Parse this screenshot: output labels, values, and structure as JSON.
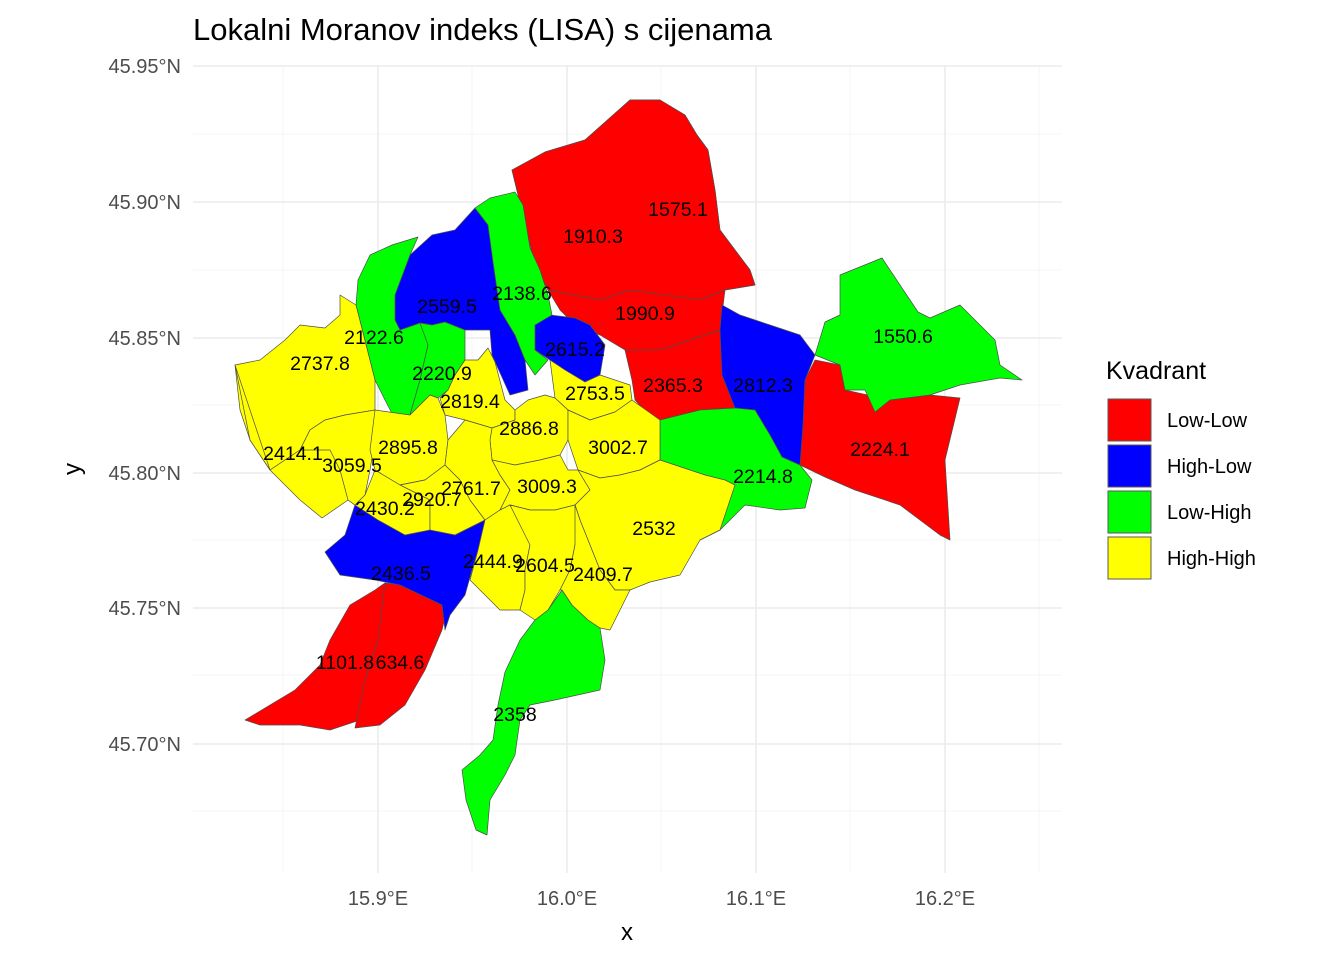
{
  "chart_data": {
    "type": "choropleth",
    "title": "Lokalni Moranov indeks (LISA) s cijenama",
    "xlabel": "x",
    "ylabel": "y",
    "x_ticks": [
      "15.9°E",
      "16.0°E",
      "16.1°E",
      "16.2°E"
    ],
    "y_ticks": [
      "45.95°N",
      "45.90°N",
      "45.85°N",
      "45.80°N",
      "45.75°N",
      "45.70°N"
    ],
    "legend": {
      "title": "Kvadrant",
      "placement": "right",
      "items": [
        {
          "label": "Low-Low",
          "color": "#ff0000"
        },
        {
          "label": "High-Low",
          "color": "#0000ff"
        },
        {
          "label": "Low-High",
          "color": "#00ff00"
        },
        {
          "label": "High-High",
          "color": "#ffff00"
        }
      ]
    },
    "regions": [
      {
        "value": "1575.1",
        "quadrant": "Low-Low"
      },
      {
        "value": "1910.3",
        "quadrant": "Low-Low"
      },
      {
        "value": "1990.9",
        "quadrant": "Low-Low"
      },
      {
        "value": "2365.3",
        "quadrant": "Low-Low"
      },
      {
        "value": "2224.1",
        "quadrant": "Low-Low"
      },
      {
        "value": "1101.8",
        "quadrant": "Low-Low"
      },
      {
        "value": "634.6",
        "quadrant": "Low-Low"
      },
      {
        "value": "2559.5",
        "quadrant": "High-Low"
      },
      {
        "value": "2615.2",
        "quadrant": "High-Low"
      },
      {
        "value": "2812.3",
        "quadrant": "High-Low"
      },
      {
        "value": "2436.5",
        "quadrant": "High-Low"
      },
      {
        "value": "2138.6",
        "quadrant": "Low-High"
      },
      {
        "value": "2122.6",
        "quadrant": "Low-High"
      },
      {
        "value": "2220.9",
        "quadrant": "Low-High"
      },
      {
        "value": "1550.6",
        "quadrant": "Low-High"
      },
      {
        "value": "2214.8",
        "quadrant": "Low-High"
      },
      {
        "value": "2358",
        "quadrant": "Low-High"
      },
      {
        "value": "2737.8",
        "quadrant": "High-High"
      },
      {
        "value": "2819.4",
        "quadrant": "High-High"
      },
      {
        "value": "2753.5",
        "quadrant": "High-High"
      },
      {
        "value": "2886.8",
        "quadrant": "High-High"
      },
      {
        "value": "3002.7",
        "quadrant": "High-High"
      },
      {
        "value": "2414.1",
        "quadrant": "High-High"
      },
      {
        "value": "3059.5",
        "quadrant": "High-High"
      },
      {
        "value": "2895.8",
        "quadrant": "High-High"
      },
      {
        "value": "2430.2",
        "quadrant": "High-High"
      },
      {
        "value": "2920.7",
        "quadrant": "High-High"
      },
      {
        "value": "2761.7",
        "quadrant": "High-High"
      },
      {
        "value": "3009.3",
        "quadrant": "High-High"
      },
      {
        "value": "2532",
        "quadrant": "High-High"
      },
      {
        "value": "2444.9",
        "quadrant": "High-High"
      },
      {
        "value": "2604.5",
        "quadrant": "High-High"
      },
      {
        "value": "2409.7",
        "quadrant": "High-High"
      }
    ]
  }
}
